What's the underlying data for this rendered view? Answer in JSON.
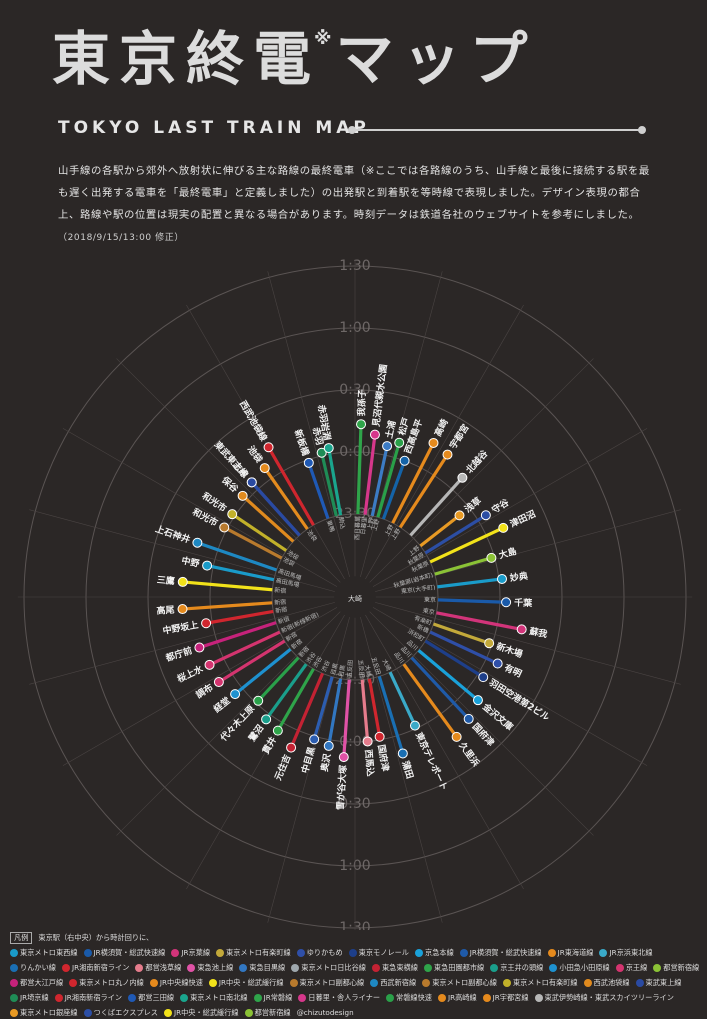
{
  "header": {
    "title": "東京終電",
    "title_mark": "※",
    "title_tail": "マップ",
    "subtitle": "TOKYO LAST TRAIN MAP",
    "intro": "山手線の各駅から郊外へ放射状に伸びる主な路線の最終電車（※ここでは各路線のうち、山手線と最後に接続する駅を最も遅く出発する電車を「最終電車」と定義しました）の出発駅と到着駅を等時線で表現しました。デザイン表現の都合上、路線や駅の位置は現実の配置と異なる場合があります。時刻データは鉄道各社のウェブサイトを参考にしました。",
    "date_note": "（2018/9/15/13:00 修正）"
  },
  "map": {
    "center_label": "大崎",
    "rings": [
      "23:30",
      "0:00",
      "0:30",
      "1:00",
      "1:30"
    ],
    "ring_label_positions": [
      "upper",
      "lower"
    ],
    "routes": [
      {
        "dest": "西武池袋線",
        "from": "",
        "angle": -30,
        "dep": 0,
        "arr": 1.45,
        "color": "#d0262e",
        "label": "西武池袋線"
      },
      {
        "dest": "東武東上線",
        "from": "",
        "angle": -42,
        "dep": 0,
        "arr": 1.15,
        "color": "#2f4fa8",
        "label": "東武東上線"
      },
      {
        "dest": "池袋",
        "from": "池袋",
        "angle": -35,
        "dep": 0,
        "arr": 1.2,
        "color": "#e48b1e",
        "label": "池袋"
      },
      {
        "dest": "赤羽",
        "from": "",
        "angle": -13,
        "dep": 0,
        "arr": 1.05,
        "color": "#1f8c56",
        "label": "赤羽"
      },
      {
        "dest": "新板橋",
        "from": "巣鴨",
        "angle": -19,
        "dep": 0,
        "arr": 0.95,
        "color": "#1f59b5",
        "label": "新板橋"
      },
      {
        "dest": "赤羽岩淵",
        "from": "駒込",
        "angle": -10,
        "dep": 0,
        "arr": 1.1,
        "color": "#1aa58d",
        "label": "赤羽岩淵"
      },
      {
        "dest": "我孫子",
        "from": "西日暮里",
        "angle": 2,
        "dep": 0,
        "arr": 1.45,
        "color": "#2fa44a",
        "label": "我孫子"
      },
      {
        "dest": "見沼代親水公園",
        "from": "日暮里",
        "angle": 7,
        "dep": 0,
        "arr": 1.3,
        "color": "#d6378b",
        "label": "見沼代親水公園"
      },
      {
        "dest": "松戸",
        "from": "上野",
        "angle": 16,
        "dep": 0,
        "arr": 1.25,
        "color": "#2aa049",
        "label": "松戸"
      },
      {
        "dest": "土浦",
        "from": "上野",
        "angle": 12,
        "dep": 0,
        "arr": 1.15,
        "color": "#3c7bc4",
        "label": "土浦"
      },
      {
        "dest": "西高島平",
        "from": "",
        "angle": 20,
        "dep": 0,
        "arr": 1.0,
        "color": "#1463a8",
        "label": "西高島平"
      },
      {
        "dest": "高崎",
        "from": "上野",
        "angle": 27,
        "dep": 0,
        "arr": 1.45,
        "color": "#e58a1d",
        "label": "高崎"
      },
      {
        "dest": "宇都宮",
        "from": "上野",
        "angle": 33,
        "dep": 0,
        "arr": 1.4,
        "color": "#e58a1d",
        "label": "宇都宮"
      },
      {
        "dest": "北越谷",
        "from": "",
        "angle": 42,
        "dep": 0,
        "arr": 1.25,
        "color": "#b7b7b7",
        "label": "北越谷"
      },
      {
        "dest": "浅草",
        "from": "上野",
        "angle": 52,
        "dep": 0,
        "arr": 0.8,
        "color": "#e89a24",
        "label": "浅草"
      },
      {
        "dest": "守谷",
        "from": "秋葉原",
        "angle": 58,
        "dep": 0,
        "arr": 1.15,
        "color": "#2c4ea4",
        "label": "守谷"
      },
      {
        "dest": "津田沼",
        "from": "秋葉原",
        "angle": 65,
        "dep": 0,
        "arr": 1.3,
        "color": "#f2e21a",
        "label": "津田沼"
      },
      {
        "dest": "大島",
        "from": "秋葉原(岩本町)",
        "angle": 74,
        "dep": 0,
        "arr": 0.95,
        "color": "#8bc236",
        "label": "大島"
      },
      {
        "dest": "妙典",
        "from": "東京(大手町)",
        "angle": 83,
        "dep": 0,
        "arr": 1.05,
        "color": "#1a9bc9",
        "label": "妙典"
      },
      {
        "dest": "千葉",
        "from": "東京",
        "angle": 92,
        "dep": 0,
        "arr": 1.1,
        "color": "#1a5aa9",
        "label": "千葉"
      },
      {
        "dest": "蘇我",
        "from": "東京",
        "angle": 101,
        "dep": 0,
        "arr": 1.4,
        "color": "#d2347a",
        "label": "蘇我"
      },
      {
        "dest": "新木場",
        "from": "有楽町",
        "angle": 109,
        "dep": 0,
        "arr": 0.95,
        "color": "#c3a93a",
        "label": "新木場"
      },
      {
        "dest": "有明",
        "from": "新橋",
        "angle": 115,
        "dep": 0,
        "arr": 1.2,
        "color": "#2f4fa8",
        "label": "有明"
      },
      {
        "dest": "羽田空港第2ビル",
        "from": "浜松町",
        "angle": 122,
        "dep": 0,
        "arr": 1.1,
        "color": "#1e3f8a",
        "label": "羽田空港第2ビル"
      },
      {
        "dest": "金沢文庫",
        "from": "品川",
        "angle": 130,
        "dep": 0,
        "arr": 1.25,
        "color": "#1aa1d9",
        "label": "金沢文庫"
      },
      {
        "dest": "国府津",
        "from": "品川",
        "angle": 137,
        "dep": 0,
        "arr": 1.35,
        "color": "#1f5aa8",
        "label": "国府津"
      },
      {
        "dest": "久里浜",
        "from": "品川",
        "angle": 144,
        "dep": 0,
        "arr": 1.45,
        "color": "#e58a1d",
        "label": "久里浜"
      },
      {
        "dest": "東京テレポート",
        "from": "大崎",
        "angle": 155,
        "dep": 0,
        "arr": 0.95,
        "color": "#3aa9c8",
        "label": "東京テレポート"
      },
      {
        "dest": "蒲田",
        "from": "五反田",
        "angle": 163,
        "dep": 0,
        "arr": 1.3,
        "color": "#1a6fb3",
        "label": "蒲田"
      },
      {
        "dest": "西馬込",
        "from": "五反田",
        "angle": 175,
        "dep": 0,
        "arr": 1.0,
        "color": "#e57c8c",
        "label": "西馬込"
      },
      {
        "dest": "国府津",
        "from": "大崎",
        "angle": 170,
        "dep": 0,
        "arr": 0.95,
        "color": "#d0262e",
        "label": "国府津"
      },
      {
        "dest": "雪が谷大塚",
        "from": "五反田",
        "angle": 184,
        "dep": 0,
        "arr": 1.25,
        "color": "#e052a6",
        "label": "雪が谷大塚"
      },
      {
        "dest": "奥沢",
        "from": "目黒",
        "angle": 190,
        "dep": 0,
        "arr": 1.1,
        "color": "#3277c1",
        "label": "奥沢"
      },
      {
        "dest": "中目黒",
        "from": "目黒",
        "angle": 196,
        "dep": 0,
        "arr": 1.05,
        "color": "#2c5db0",
        "label": "中目黒"
      },
      {
        "dest": "元住吉",
        "from": "渋谷",
        "angle": 203,
        "dep": 0,
        "arr": 1.3,
        "color": "#c32233",
        "label": "元住吉"
      },
      {
        "dest": "貫井",
        "from": "渋谷",
        "angle": 210,
        "dep": 0,
        "arr": 1.15,
        "color": "#2fa44a",
        "label": "貫井"
      },
      {
        "dest": "鷺沼",
        "from": "渋谷",
        "angle": 216,
        "dep": 0,
        "arr": 1.1,
        "color": "#1a9e8b",
        "label": "鷺沼"
      },
      {
        "dest": "代々木上原",
        "from": "新宿",
        "angle": 223,
        "dep": 0,
        "arr": 0.95,
        "color": "#2aa04a",
        "label": "代々木上原"
      },
      {
        "dest": "経堂",
        "from": "新宿",
        "angle": 231,
        "dep": 0,
        "arr": 1.15,
        "color": "#1e91cf",
        "label": "経堂"
      },
      {
        "dest": "調布",
        "from": "新宿",
        "angle": 238,
        "dep": 0,
        "arr": 1.25,
        "color": "#d4346f",
        "label": "調布"
      },
      {
        "dest": "桜上水",
        "from": "新宿(新線新宿)",
        "angle": 245,
        "dep": 0,
        "arr": 1.25,
        "color": "#d4346f",
        "label": "桜上水"
      },
      {
        "dest": "都庁前",
        "from": "新宿",
        "angle": 252,
        "dep": 0,
        "arr": 1.3,
        "color": "#c6227b",
        "label": "都庁前"
      },
      {
        "dest": "中野坂上",
        "from": "新宿",
        "angle": 260,
        "dep": 0,
        "arr": 1.1,
        "color": "#d0262e",
        "label": "中野坂上"
      },
      {
        "dest": "高尾",
        "from": "新宿",
        "angle": 266,
        "dep": 0,
        "arr": 1.45,
        "color": "#e58a1d",
        "label": "高尾"
      },
      {
        "dest": "三鷹",
        "from": "新宿",
        "angle": 275,
        "dep": 0,
        "arr": 1.45,
        "color": "#f2e21a",
        "label": "三鷹"
      },
      {
        "dest": "中野",
        "from": "高田馬場",
        "angle": 282,
        "dep": 0,
        "arr": 1.1,
        "color": "#1a9bc9",
        "label": "中野"
      },
      {
        "dest": "上石神井",
        "from": "高田馬場",
        "angle": 289,
        "dep": 0,
        "arr": 1.35,
        "color": "#1e88c2",
        "label": "上石神井"
      },
      {
        "dest": "和光市",
        "from": "池袋",
        "angle": 298,
        "dep": 0,
        "arr": 1.05,
        "color": "#b87a2d",
        "label": "和光市"
      },
      {
        "dest": "和光市",
        "from": "池袋",
        "angle": 304,
        "dep": 0,
        "arr": 1.05,
        "color": "#c2b12a",
        "label": "和光市"
      },
      {
        "dest": "保谷",
        "from": "",
        "angle": 312,
        "dep": 0,
        "arr": 1.1,
        "color": "#e08a1e",
        "label": "保谷"
      },
      {
        "dest": "志木",
        "from": "",
        "angle": 318,
        "dep": 0,
        "arr": 1.15,
        "color": "#2a4aa2",
        "label": "志木"
      }
    ]
  },
  "legend": {
    "head_box": "凡例",
    "head_text": "東京駅（右中央）から時計回りに、",
    "credit": "@chizutodesign",
    "items": [
      {
        "label": "東京メトロ東西線",
        "color": "#1a9bc9"
      },
      {
        "label": "JR横須賀・総武快速線",
        "color": "#1a5aa9"
      },
      {
        "label": "JR京葉線",
        "color": "#d2347a"
      },
      {
        "label": "東京メトロ有楽町線",
        "color": "#c3a93a"
      },
      {
        "label": "ゆりかもめ",
        "color": "#2f4fa8"
      },
      {
        "label": "東京モノレール",
        "color": "#1e3f8a"
      },
      {
        "label": "京急本線",
        "color": "#1aa1d9"
      },
      {
        "label": "JR横須賀・総武快速線",
        "color": "#1f5aa8"
      },
      {
        "label": "JR東海道線",
        "color": "#e58a1d"
      },
      {
        "label": "JR京浜東北線",
        "color": "#3aa9c8"
      },
      {
        "label": "りんかい線",
        "color": "#1a6fb3"
      },
      {
        "label": "JR湘南新宿ライン",
        "color": "#d0262e"
      },
      {
        "label": "都営浅草線",
        "color": "#e57c8c"
      },
      {
        "label": "東急池上線",
        "color": "#e052a6"
      },
      {
        "label": "東急目黒線",
        "color": "#3277c1"
      },
      {
        "label": "東京メトロ日比谷線",
        "color": "#9ea7ad"
      },
      {
        "label": "東急東横線",
        "color": "#c32233"
      },
      {
        "label": "東急田園都市線",
        "color": "#2fa44a"
      },
      {
        "label": "京王井の頭線",
        "color": "#1a9e8b"
      },
      {
        "label": "小田急小田原線",
        "color": "#1e91cf"
      },
      {
        "label": "京王線",
        "color": "#d4346f"
      },
      {
        "label": "都営新宿線",
        "color": "#8bc236"
      },
      {
        "label": "都営大江戸線",
        "color": "#c6227b"
      },
      {
        "label": "東京メトロ丸ノ内線",
        "color": "#d0262e"
      },
      {
        "label": "JR中央線快速",
        "color": "#e58a1d"
      },
      {
        "label": "JR中央・総武緩行線",
        "color": "#f2e21a"
      },
      {
        "label": "東京メトロ副都心線",
        "color": "#b87a2d"
      },
      {
        "label": "西武新宿線",
        "color": "#1e88c2"
      },
      {
        "label": "東京メトロ副都心線",
        "color": "#b87a2d"
      },
      {
        "label": "東京メトロ有楽町線",
        "color": "#c2b12a"
      },
      {
        "label": "西武池袋線",
        "color": "#e08a1e"
      },
      {
        "label": "東武東上線",
        "color": "#2a4aa2"
      },
      {
        "label": "JR埼京線",
        "color": "#1f8c56"
      },
      {
        "label": "JR湘南新宿ライン",
        "color": "#d0262e"
      },
      {
        "label": "都営三田線",
        "color": "#1f59b5"
      },
      {
        "label": "東京メトロ南北線",
        "color": "#1aa58d"
      },
      {
        "label": "JR常磐線",
        "color": "#2fa44a"
      },
      {
        "label": "日暮里・舎人ライナー",
        "color": "#d6378b"
      },
      {
        "label": "常磐線快速",
        "color": "#2aa049"
      },
      {
        "label": "JR高崎線",
        "color": "#e58a1d"
      },
      {
        "label": "JR宇都宮線",
        "color": "#e58a1d"
      },
      {
        "label": "東武伊勢崎線・東武スカイツリーライン",
        "color": "#b7b7b7"
      },
      {
        "label": "東京メトロ銀座線",
        "color": "#e89a24"
      },
      {
        "label": "つくばエクスプレス",
        "color": "#2c4ea4"
      },
      {
        "label": "JR中央・総武緩行線",
        "color": "#f2e21a"
      },
      {
        "label": "都営新宿線",
        "color": "#8bc236"
      }
    ]
  }
}
